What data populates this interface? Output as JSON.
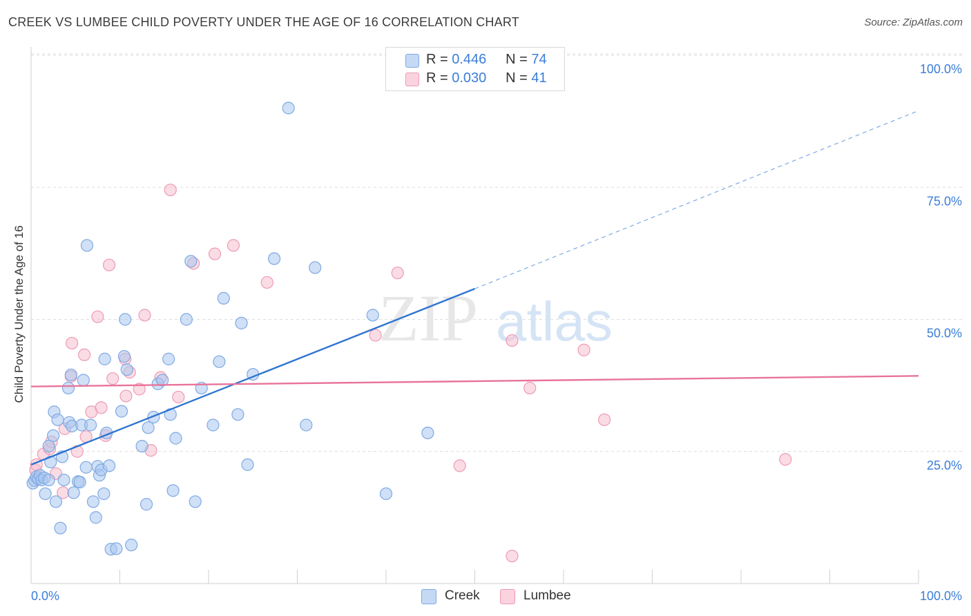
{
  "title": "CREEK VS LUMBEE CHILD POVERTY UNDER THE AGE OF 16 CORRELATION CHART",
  "source": "Source: ZipAtlas.com",
  "watermark": {
    "zip": "ZIP",
    "atlas": "atlas"
  },
  "legend": {
    "r_label": "R =",
    "n_label": "N =",
    "rows": [
      {
        "r": "0.446",
        "n": "74",
        "color": "#a9c6ee"
      },
      {
        "r": "0.030",
        "n": "41",
        "color": "#f6bfd0"
      }
    ]
  },
  "chart_data": {
    "type": "scatter",
    "title": "CREEK VS LUMBEE CHILD POVERTY UNDER THE AGE OF 16 CORRELATION CHART",
    "xlabel": "",
    "ylabel": "Child Poverty Under the Age of 16",
    "xlim": [
      0,
      100
    ],
    "ylim": [
      0,
      100
    ],
    "x_tick_labels": [
      "0.0%",
      "100.0%"
    ],
    "y_tick_labels": [
      "25.0%",
      "50.0%",
      "75.0%",
      "100.0%"
    ],
    "y_ticks": [
      25,
      50,
      75,
      100
    ],
    "grid": true,
    "legend_position": "top-center",
    "series": [
      {
        "name": "Creek",
        "color": "#3b7dd8",
        "fill": "#a9c6ee",
        "trend": {
          "x": [
            0,
            50
          ],
          "y": [
            22.5,
            55.8
          ],
          "dashed_extension": {
            "x": [
              50,
              100
            ],
            "y": [
              55.8,
              89.5
            ]
          },
          "color": "#2f74d0"
        },
        "points": [
          [
            0.2,
            19
          ],
          [
            0.4,
            19.5
          ],
          [
            0.6,
            20.2
          ],
          [
            0.8,
            19.8
          ],
          [
            1,
            20.5
          ],
          [
            1.2,
            19.6
          ],
          [
            1.5,
            20
          ],
          [
            1.6,
            17
          ],
          [
            2,
            19.6
          ],
          [
            2,
            26
          ],
          [
            2.2,
            23
          ],
          [
            2.5,
            28
          ],
          [
            2.6,
            32.5
          ],
          [
            2.8,
            15.5
          ],
          [
            3,
            31
          ],
          [
            3.3,
            10.5
          ],
          [
            3.5,
            24
          ],
          [
            3.7,
            19.6
          ],
          [
            4.2,
            37
          ],
          [
            4.3,
            30.5
          ],
          [
            4.5,
            39.5
          ],
          [
            4.6,
            29.8
          ],
          [
            4.8,
            17.2
          ],
          [
            5.3,
            19.3
          ],
          [
            5.5,
            19.2
          ],
          [
            5.7,
            30
          ],
          [
            5.9,
            38.5
          ],
          [
            6.2,
            22
          ],
          [
            6.3,
            64
          ],
          [
            6.7,
            30
          ],
          [
            7,
            15.5
          ],
          [
            7.3,
            12.5
          ],
          [
            7.5,
            22.2
          ],
          [
            7.7,
            20.5
          ],
          [
            7.9,
            21.5
          ],
          [
            8.2,
            17
          ],
          [
            8.3,
            42.5
          ],
          [
            8.5,
            28.5
          ],
          [
            8.8,
            22.3
          ],
          [
            9,
            6.5
          ],
          [
            9.6,
            6.6
          ],
          [
            10.2,
            32.6
          ],
          [
            10.5,
            43
          ],
          [
            10.6,
            50
          ],
          [
            10.8,
            40.5
          ],
          [
            11.3,
            7.3
          ],
          [
            12.5,
            26
          ],
          [
            13,
            15
          ],
          [
            13.2,
            29.5
          ],
          [
            13.8,
            31.5
          ],
          [
            14.3,
            37.8
          ],
          [
            14.8,
            38.5
          ],
          [
            15.5,
            42.5
          ],
          [
            15.7,
            32
          ],
          [
            16,
            17.6
          ],
          [
            16.3,
            27.5
          ],
          [
            17.5,
            50
          ],
          [
            18,
            61
          ],
          [
            18.5,
            15.5
          ],
          [
            19.2,
            37
          ],
          [
            20.5,
            30
          ],
          [
            21.2,
            42
          ],
          [
            21.7,
            54
          ],
          [
            23.3,
            32
          ],
          [
            23.7,
            49.3
          ],
          [
            24.4,
            22.5
          ],
          [
            25,
            39.6
          ],
          [
            27.4,
            61.5
          ],
          [
            29,
            90
          ],
          [
            31,
            30
          ],
          [
            32,
            59.8
          ],
          [
            38.5,
            50.8
          ],
          [
            40,
            17
          ],
          [
            44.7,
            28.5
          ]
        ]
      },
      {
        "name": "Lumbee",
        "color": "#e8739a",
        "fill": "#f6bfd0",
        "trend": {
          "x": [
            0,
            100
          ],
          "y": [
            37.3,
            39.3
          ],
          "color": "#e8739a"
        },
        "points": [
          [
            0.5,
            21.5
          ],
          [
            0.6,
            22.5
          ],
          [
            1.4,
            24.5
          ],
          [
            2.1,
            25.5
          ],
          [
            2.3,
            26.8
          ],
          [
            2.8,
            20.8
          ],
          [
            3.6,
            17.2
          ],
          [
            3.8,
            29.3
          ],
          [
            4.5,
            39.2
          ],
          [
            4.6,
            45.5
          ],
          [
            5.2,
            25
          ],
          [
            6,
            43.3
          ],
          [
            6.2,
            27.8
          ],
          [
            6.8,
            32.5
          ],
          [
            7.5,
            50.5
          ],
          [
            7.9,
            33.3
          ],
          [
            8.4,
            28
          ],
          [
            8.8,
            60.3
          ],
          [
            9.2,
            38.8
          ],
          [
            10.6,
            42.5
          ],
          [
            10.7,
            35.5
          ],
          [
            11.1,
            40
          ],
          [
            12.2,
            36.8
          ],
          [
            12.8,
            50.8
          ],
          [
            13.5,
            25.2
          ],
          [
            14.6,
            39
          ],
          [
            15.7,
            74.5
          ],
          [
            16.6,
            35.3
          ],
          [
            18.3,
            60.6
          ],
          [
            20.7,
            62.4
          ],
          [
            22.8,
            64
          ],
          [
            26.6,
            57
          ],
          [
            38.8,
            47
          ],
          [
            41.3,
            58.8
          ],
          [
            48.3,
            22.3
          ],
          [
            54.2,
            46
          ],
          [
            54.2,
            5.2
          ],
          [
            56.2,
            37
          ],
          [
            62.3,
            44.2
          ],
          [
            64.6,
            31
          ],
          [
            85,
            23.5
          ]
        ]
      }
    ]
  }
}
